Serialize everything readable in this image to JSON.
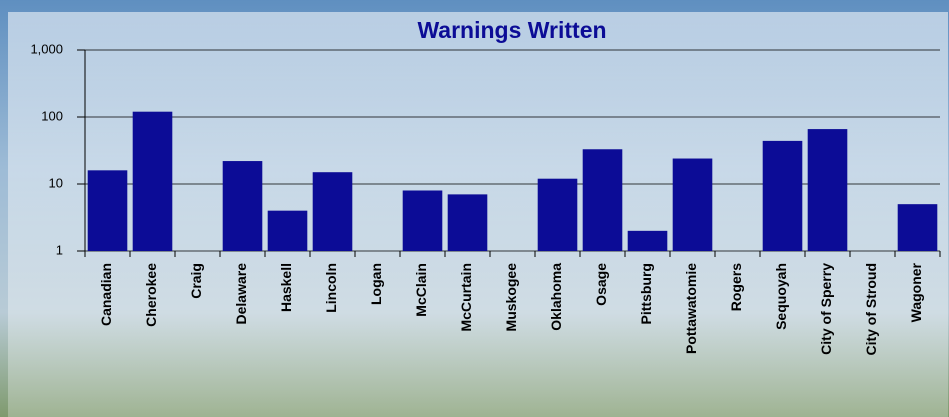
{
  "chart_data": {
    "type": "bar",
    "title": "Warnings Written",
    "categories": [
      "Canadian",
      "Cherokee",
      "Craig",
      "Delaware",
      "Haskell",
      "Lincoln",
      "Logan",
      "McClain",
      "McCurtain",
      "Muskogee",
      "Oklahoma",
      "Osage",
      "Pittsburg",
      "Pottawatomie",
      "Rogers",
      "Sequoyah",
      "City of Sperry",
      "City of Stroud",
      "Wagoner"
    ],
    "values": [
      16,
      120,
      0,
      22,
      4,
      15,
      0,
      8,
      7,
      0,
      12,
      33,
      2,
      24,
      0,
      44,
      66,
      0,
      5
    ],
    "color": "#0c0c96",
    "log_scale": true,
    "ylim": [
      1,
      1000
    ],
    "yticks": [
      1,
      10,
      100,
      {
        "value": 1000,
        "label": "1,000"
      }
    ],
    "grid": true
  }
}
